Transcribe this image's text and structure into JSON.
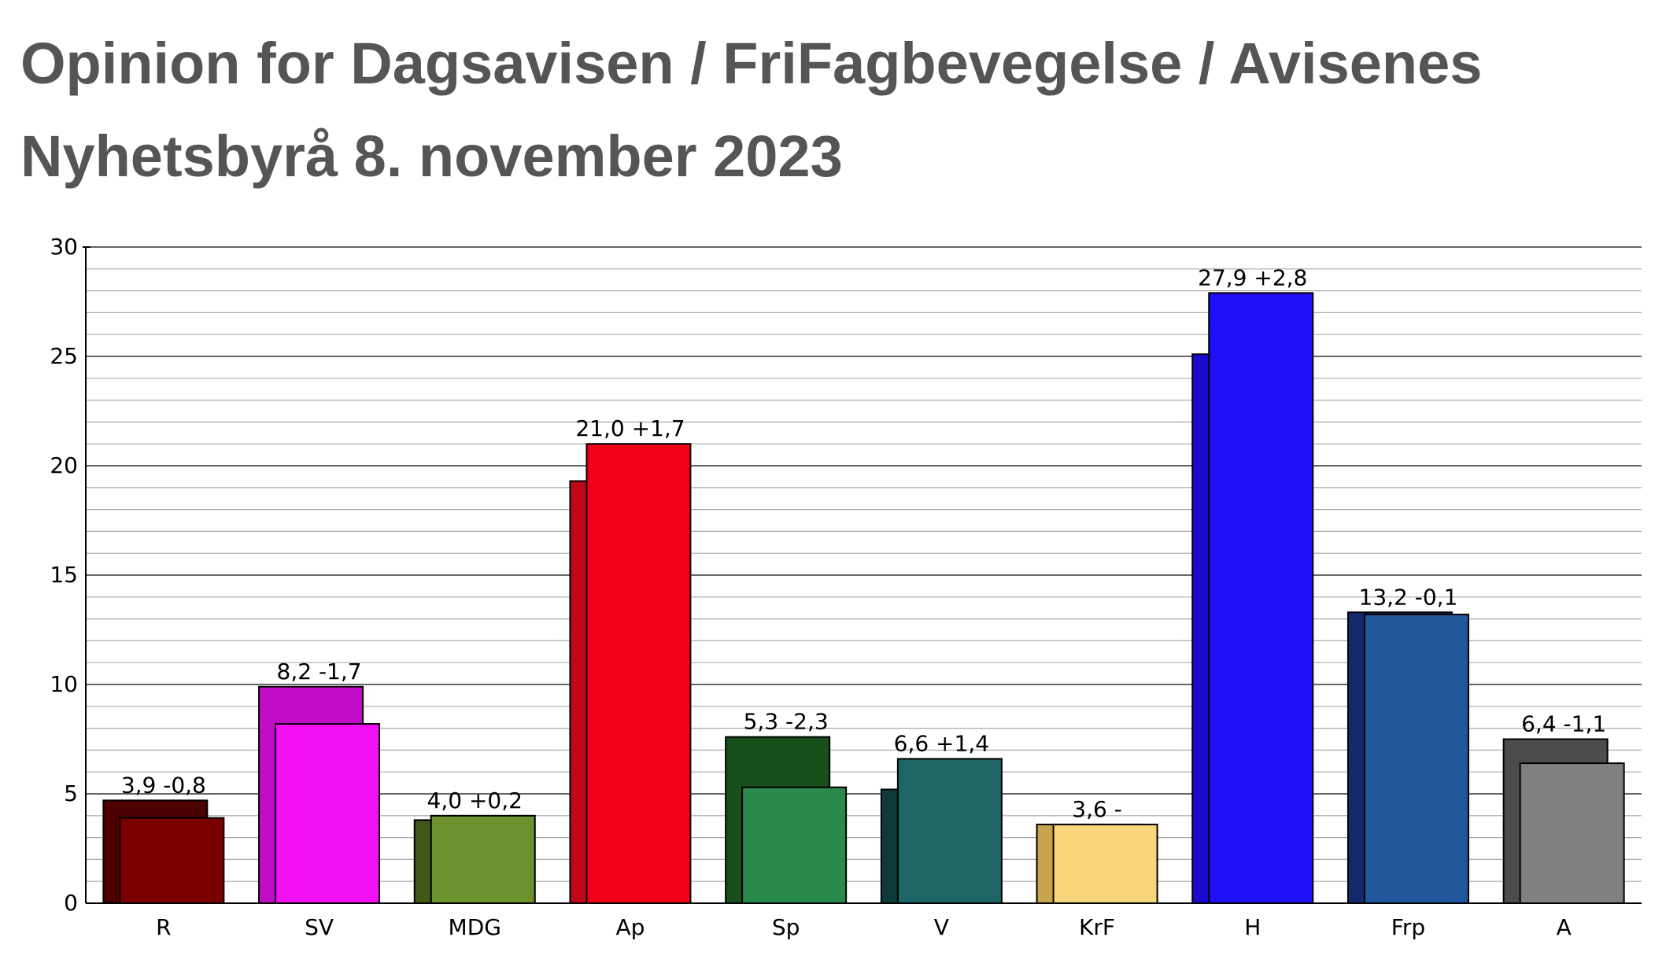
{
  "title": "Opinion for Dagsavisen / FriFagbevegelse / Avisenes Nyhetsbyrå 8. november 2023",
  "chart_data": {
    "type": "bar",
    "categories": [
      "R",
      "SV",
      "MDG",
      "Ap",
      "Sp",
      "V",
      "KrF",
      "H",
      "Frp",
      "A"
    ],
    "series": [
      {
        "values": [
          4.7,
          9.9,
          3.8,
          19.3,
          7.6,
          5.2,
          3.6,
          25.1,
          13.3,
          7.5
        ]
      },
      {
        "values": [
          3.9,
          8.2,
          4.0,
          21.0,
          5.3,
          6.6,
          3.6,
          27.9,
          13.2,
          6.4
        ]
      }
    ],
    "data_labels": [
      "3,9 -0,8",
      "8,2 -1,7",
      "4,0 +0,2",
      "21,0 +1,7",
      "5,3 -2,3",
      "6,6 +1,4",
      "3,6 -",
      "27,9 +2,8",
      "13,2 -0,1",
      "6,4 -1,1"
    ],
    "colors_current": [
      "#7b0000",
      "#f20ff2",
      "#6c9230",
      "#f20018",
      "#2a8a4c",
      "#1e6666",
      "#f8d57b",
      "#2010f8",
      "#20579a",
      "#808080"
    ],
    "colors_previous": [
      "#4d0000",
      "#c10dc8",
      "#3f5a18",
      "#c00818",
      "#184f1a",
      "#0f3a3a",
      "#c9a44c",
      "#1a0ad0",
      "#14296c",
      "#4d4d4d"
    ],
    "ylim": [
      0,
      30
    ],
    "yticks": [
      "0",
      "5",
      "10",
      "15",
      "20",
      "25",
      "30"
    ],
    "grid": true,
    "xlabel": "",
    "ylabel": ""
  }
}
